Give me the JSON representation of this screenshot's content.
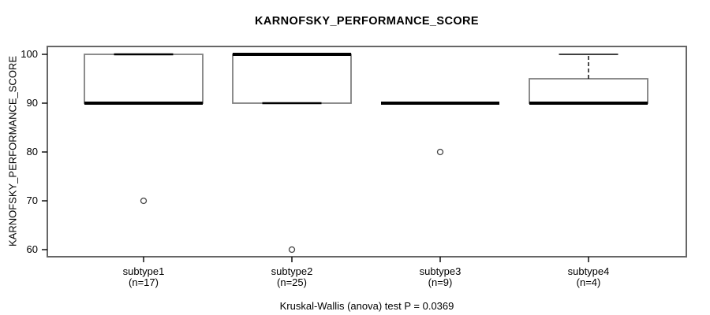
{
  "chart_data": {
    "type": "boxplot",
    "title": "KARNOFSKY_PERFORMANCE_SCORE",
    "xlabel": "",
    "ylabel": "KARNOFSKY_PERFORMANCE_SCORE",
    "ylim": [
      60,
      100
    ],
    "yticks": [
      60,
      70,
      80,
      90,
      100
    ],
    "grid": false,
    "legend": "none",
    "categories": [
      "subtype1",
      "subtype2",
      "subtype3",
      "subtype4"
    ],
    "groups": [
      {
        "label": "subtype1",
        "n_label": "(n=17)",
        "n": 17,
        "q1": 90,
        "median": 90,
        "q3": 100,
        "whisker_low": 90,
        "whisker_high": 100,
        "outliers": [
          70
        ]
      },
      {
        "label": "subtype2",
        "n_label": "(n=25)",
        "n": 25,
        "q1": 90,
        "median": 100,
        "q3": 100,
        "whisker_low": 90,
        "whisker_high": 100,
        "outliers": [
          60
        ]
      },
      {
        "label": "subtype3",
        "n_label": "(n=9)",
        "n": 9,
        "q1": 90,
        "median": 90,
        "q3": 90,
        "whisker_low": 90,
        "whisker_high": 90,
        "outliers": [
          80
        ]
      },
      {
        "label": "subtype4",
        "n_label": "(n=4)",
        "n": 4,
        "q1": 90,
        "median": 90,
        "q3": 95,
        "whisker_low": 90,
        "whisker_high": 100,
        "outliers": []
      }
    ],
    "annotation": "Kruskal-Wallis (anova) test P = 0.0369",
    "colors": {
      "background": "#ffffff",
      "frame": "#666666",
      "box_border": "#808080",
      "box_fill": "#ffffff",
      "median": "#000000",
      "whisker": "#000000",
      "outlier_stroke": "#444444",
      "outlier_fill": "#ffffff",
      "tick": "#000000",
      "text": "#000000"
    }
  }
}
